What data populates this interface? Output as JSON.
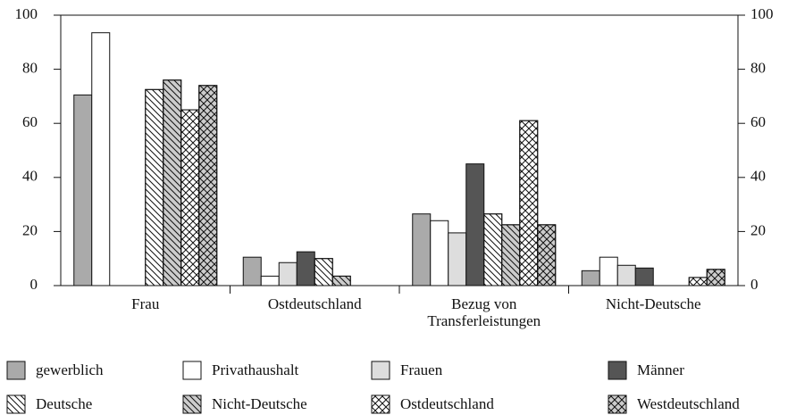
{
  "chart_data": {
    "type": "bar",
    "categories": [
      "Frau",
      "Ostdeutschland",
      "Bezug von\nTransferleistungen",
      "Nicht-Deutsche"
    ],
    "series": [
      {
        "name": "gewerblich",
        "color": "#aaaaaa",
        "hatch": "none",
        "values": [
          70.5,
          10.5,
          26.5,
          5.5
        ]
      },
      {
        "name": "Privathaushalt",
        "color": "#ffffff",
        "hatch": "none",
        "values": [
          93.5,
          3.5,
          24,
          10.5
        ]
      },
      {
        "name": "Frauen",
        "color": "#dddddd",
        "hatch": "none",
        "values": [
          null,
          8.5,
          19.5,
          7.5
        ]
      },
      {
        "name": "Männer",
        "color": "#555555",
        "hatch": "none",
        "values": [
          null,
          12.5,
          45,
          6.5
        ]
      },
      {
        "name": "Deutsche",
        "color": "#ffffff",
        "hatch": "diagonal",
        "values": [
          72.5,
          10,
          26.5,
          null
        ]
      },
      {
        "name": "Nicht-Deutsche",
        "color": "#cccccc",
        "hatch": "diagonal",
        "values": [
          76,
          3.5,
          22.5,
          null
        ]
      },
      {
        "name": "Ostdeutschland",
        "color": "#ffffff",
        "hatch": "cross",
        "values": [
          65,
          null,
          61,
          3
        ]
      },
      {
        "name": "Westdeutschland",
        "color": "#cccccc",
        "hatch": "cross",
        "values": [
          74,
          null,
          22.5,
          6
        ]
      }
    ],
    "ylim": [
      0,
      100
    ],
    "yticks": [
      0,
      20,
      40,
      60,
      80,
      100
    ],
    "y2lim": [
      0,
      100
    ],
    "y2ticks": [
      0,
      20,
      40,
      60,
      80,
      100
    ],
    "grid": false,
    "legend": "bottom"
  }
}
